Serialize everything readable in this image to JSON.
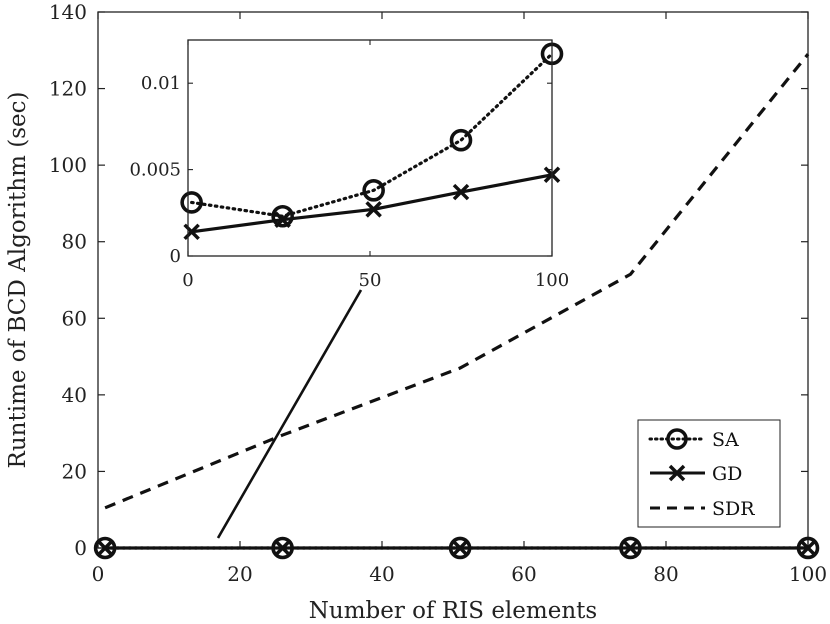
{
  "chart_data": [
    {
      "type": "line",
      "xlabel": "Number of RIS elements",
      "ylabel": "Runtime of BCD Algorithm (sec)",
      "xlim": [
        0,
        100
      ],
      "ylim": [
        0,
        140
      ],
      "xticks": [
        "0",
        "20",
        "40",
        "60",
        "80",
        "100"
      ],
      "yticks": [
        "0",
        "20",
        "40",
        "60",
        "80",
        "100",
        "120",
        "140"
      ],
      "grid": false,
      "legend": "bottom-right",
      "x": [
        1,
        26,
        51,
        75,
        100
      ],
      "series": [
        {
          "name": "SA",
          "values": [
            0.0031,
            0.0023,
            0.0038,
            0.0067,
            0.0117
          ],
          "style": "dotted",
          "marker": "circle"
        },
        {
          "name": "GD",
          "values": [
            0.0014,
            0.0021,
            0.0027,
            0.0037,
            0.0047
          ],
          "style": "solid",
          "marker": "x"
        },
        {
          "name": "SDR",
          "values": [
            10.5,
            29.5,
            47,
            71.5,
            129
          ],
          "style": "dashed",
          "marker": "none"
        }
      ]
    },
    {
      "type": "line",
      "xlim": [
        0,
        100
      ],
      "ylim": [
        0,
        0.0125
      ],
      "xticks": [
        "0",
        "50",
        "100"
      ],
      "yticks": [
        "0",
        "0.005",
        "0.01"
      ],
      "grid": false,
      "x": [
        1,
        26,
        51,
        75,
        100
      ],
      "series": [
        {
          "name": "SA",
          "values": [
            0.0031,
            0.0023,
            0.0038,
            0.0067,
            0.0117
          ],
          "style": "dotted",
          "marker": "circle"
        },
        {
          "name": "GD",
          "values": [
            0.0014,
            0.0021,
            0.0027,
            0.0037,
            0.0047
          ],
          "style": "solid",
          "marker": "x"
        }
      ]
    }
  ]
}
